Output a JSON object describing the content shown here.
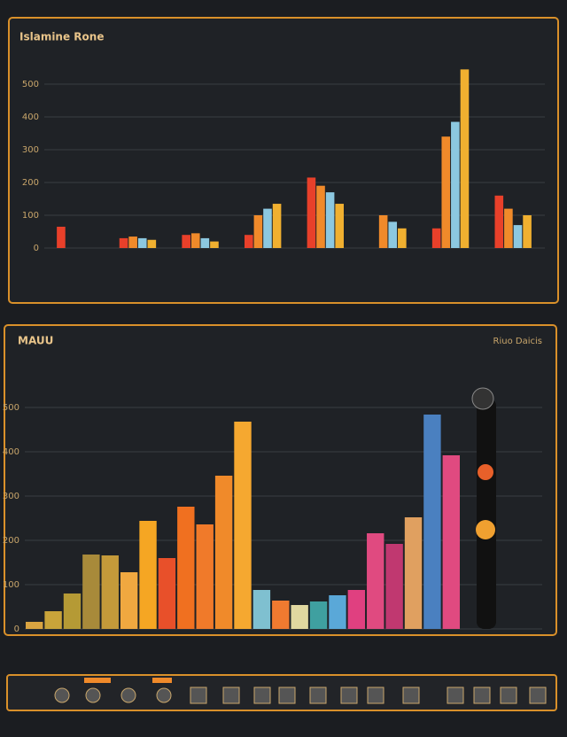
{
  "chart_data": [
    {
      "type": "grouped-bar",
      "title": "Islamine Rone",
      "categories": [
        null,
        null,
        null,
        null,
        null,
        null,
        null,
        null
      ],
      "series": [
        {
          "color": "#e8402a",
          "values": [
            65,
            30,
            40,
            40,
            215,
            0,
            60,
            160
          ]
        },
        {
          "color": "#f08a2a",
          "values": [
            0,
            35,
            45,
            100,
            190,
            100,
            340,
            120
          ]
        },
        {
          "color": "#8cc8e0",
          "values": [
            0,
            30,
            30,
            120,
            170,
            80,
            385,
            70
          ]
        },
        {
          "color": "#f0b030",
          "values": [
            0,
            25,
            20,
            135,
            135,
            60,
            545,
            100
          ]
        }
      ],
      "ylim": [
        0,
        500
      ],
      "yticks": [
        0,
        100,
        200,
        300,
        400,
        500
      ],
      "grid": true
    },
    {
      "type": "bar",
      "title": "MAUU",
      "subtitle": "Riuo Daicis",
      "values": [
        16,
        40,
        80,
        168,
        166,
        128,
        244,
        160,
        276,
        236,
        346,
        468,
        88,
        64,
        54,
        62,
        76,
        88,
        216,
        192,
        252,
        484,
        392
      ],
      "colors": [
        "#d9a441",
        "#c9a43a",
        "#b59a35",
        "#a88a3a",
        "#c49a3a",
        "#f0a840",
        "#f5a623",
        "#e8502a",
        "#f07020",
        "#f07a2a",
        "#f08a2a",
        "#f5a830",
        "#7fc0d0",
        "#f07a30",
        "#e0d8a0",
        "#3fa0a0",
        "#5aa8d8",
        "#e04080",
        "#e04a80",
        "#c03870",
        "#e0a060",
        "#4a80c0",
        "#e04a80"
      ],
      "ylim": [
        0,
        600
      ],
      "yticks": [
        0,
        100,
        200,
        300,
        400,
        500
      ],
      "grid": true
    }
  ]
}
